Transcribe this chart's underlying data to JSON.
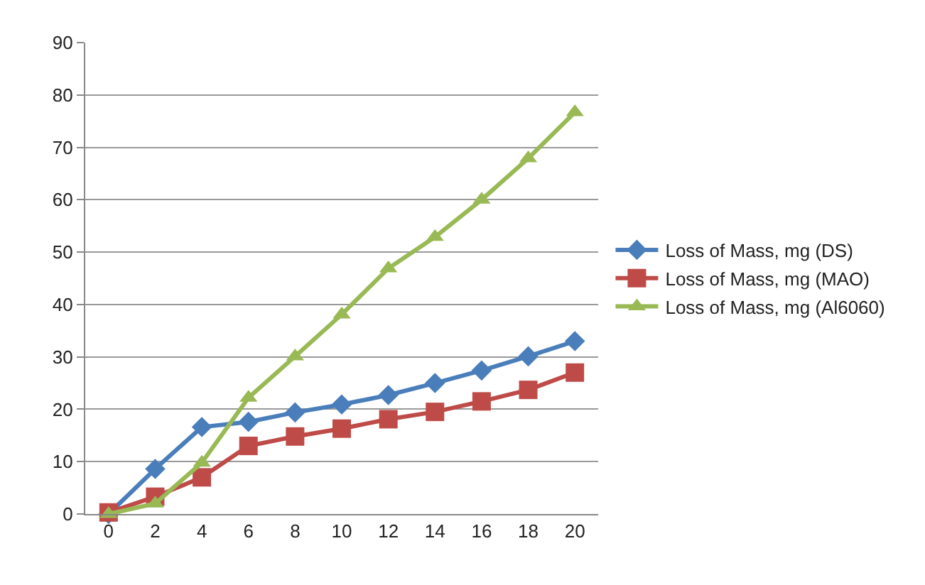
{
  "chart_data": {
    "type": "line",
    "categories": [
      "0",
      "2",
      "4",
      "6",
      "8",
      "10",
      "12",
      "14",
      "16",
      "18",
      "20"
    ],
    "series": [
      {
        "name": "Loss of Mass, mg (DS)",
        "color": "#4a7ebb",
        "marker": "diamond",
        "values": [
          0,
          8.6,
          16.6,
          17.6,
          19.4,
          20.9,
          22.7,
          25,
          27.4,
          30.1,
          33
        ]
      },
      {
        "name": "Loss of Mass, mg (MAO)",
        "color": "#be4b48",
        "marker": "square",
        "values": [
          0.3,
          3.3,
          7,
          13,
          14.8,
          16.3,
          18.1,
          19.5,
          21.5,
          23.7,
          27
        ]
      },
      {
        "name": "Loss of Mass, mg (Al6060)",
        "color": "#98b954",
        "marker": "triangle",
        "values": [
          0,
          2,
          9.8,
          22.2,
          30.1,
          38.1,
          46.9,
          52.9,
          60,
          67.9,
          76.7
        ]
      }
    ],
    "ylim": [
      0,
      90
    ],
    "yticks": [
      0,
      10,
      20,
      30,
      40,
      50,
      60,
      70,
      80,
      90
    ],
    "grid": "y",
    "legend": "right",
    "line_style": "solid"
  }
}
